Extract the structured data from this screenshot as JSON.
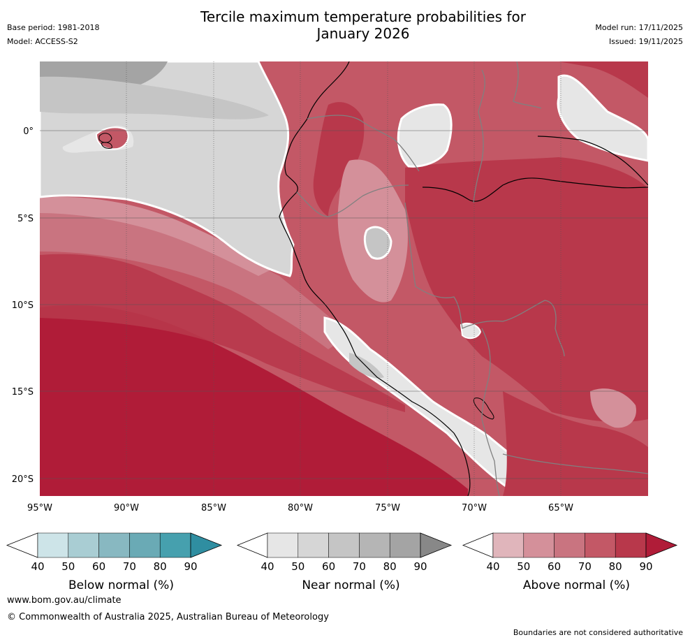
{
  "title_line1": "Tercile maximum temperature probabilities for",
  "title_line2": "January 2026",
  "base_period": "Base period: 1981-2018",
  "model": "Model: ACCESS-S2",
  "model_run": "Model run: 17/11/2025",
  "issued": "Issued: 19/11/2025",
  "lat_labels": [
    "0°",
    "5°S",
    "10°S",
    "15°S",
    "20°S"
  ],
  "lon_labels": [
    "95°W",
    "90°W",
    "85°W",
    "80°W",
    "75°W",
    "70°W",
    "65°W"
  ],
  "colorbars": [
    {
      "title": "Below normal (%)",
      "ticks": [
        "40",
        "50",
        "60",
        "70",
        "80",
        "90"
      ],
      "colors": [
        "#cde4e8",
        "#a9cdd3",
        "#88b8c1",
        "#6aaab5",
        "#46a0ae",
        "#2f8ea1"
      ]
    },
    {
      "title": "Near normal (%)",
      "ticks": [
        "40",
        "50",
        "60",
        "70",
        "80",
        "90"
      ],
      "colors": [
        "#e6e6e6",
        "#d6d6d6",
        "#c5c5c5",
        "#b5b5b5",
        "#a4a4a4",
        "#888888"
      ]
    },
    {
      "title": "Above normal (%)",
      "ticks": [
        "40",
        "50",
        "60",
        "70",
        "80",
        "90"
      ],
      "colors": [
        "#e0b5bb",
        "#d4909a",
        "#c97480",
        "#c35866",
        "#b8384b",
        "#b01c38"
      ]
    }
  ],
  "website": "www.bom.gov.au/climate",
  "copyright": "© Commonwealth of Australia 2025, Australian Bureau of Meteorology",
  "disclaimer": "Boundaries are not considered authoritative"
}
